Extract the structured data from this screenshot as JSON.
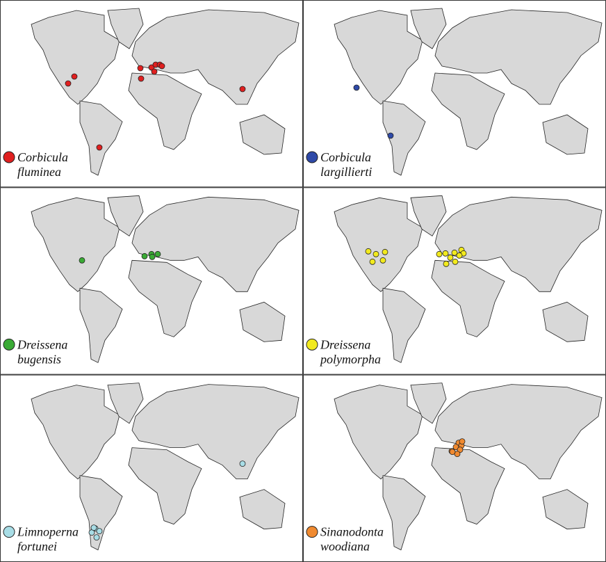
{
  "panels": [
    {
      "species": [
        "Corbicula",
        "fluminea"
      ],
      "color": "#e02020"
    },
    {
      "species": [
        "Corbicula",
        "largillierti"
      ],
      "color": "#2f4aa8"
    },
    {
      "species": [
        "Dreissena",
        "bugensis"
      ],
      "color": "#3aaa35"
    },
    {
      "species": [
        "Dreissena",
        "polymorpha"
      ],
      "color": "#f2ea1e"
    },
    {
      "species": [
        "Limnoperna",
        "fortunei"
      ],
      "color": "#a8dde6"
    },
    {
      "species": [
        "Sinanodonta",
        "woodiana"
      ],
      "color": "#f08a30"
    }
  ]
}
